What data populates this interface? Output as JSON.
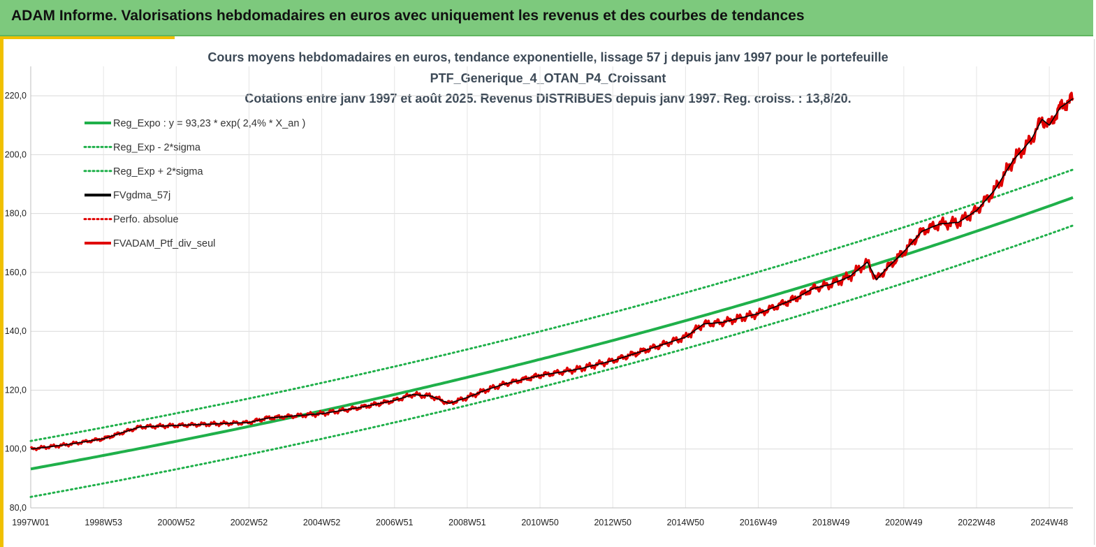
{
  "header": {
    "title": "ADAM Informe. Valorisations hebdomadaires en euros avec uniquement les revenus et des courbes de tendances"
  },
  "chart_data": {
    "type": "line",
    "title_lines": [
      "Cours moyens hebdomadaires  en euros, tendance exponentielle, lissage 57 j depuis janv 1997 pour le portefeuille",
      "PTF_Generique_4_OTAN_P4_Croissant",
      "Cotations  entre janv 1997 et août  2025. Revenus DISTRIBUES depuis janv 1997. Reg. croiss. : 13,8/20."
    ],
    "x_tick_labels": [
      "1997W01",
      "1998W53",
      "2000W52",
      "2002W52",
      "2004W52",
      "2006W51",
      "2008W51",
      "2010W50",
      "2012W50",
      "2014W50",
      "2016W49",
      "2018W49",
      "2020W49",
      "2022W48",
      "2024W48"
    ],
    "x_tick_years": [
      1997.0,
      1999.0,
      2001.0,
      2003.0,
      2005.0,
      2007.0,
      2009.0,
      2011.0,
      2013.0,
      2015.0,
      2017.0,
      2019.0,
      2021.0,
      2023.0,
      2025.0
    ],
    "xlim": [
      1997.0,
      2025.65
    ],
    "y_tick_labels": [
      "80,0",
      "100,0",
      "120,0",
      "140,0",
      "160,0",
      "180,0",
      "200,0",
      "220,0"
    ],
    "y_ticks": [
      80,
      100,
      120,
      140,
      160,
      180,
      200,
      220
    ],
    "ylim": [
      80,
      230
    ],
    "grid": true,
    "legend_position": "top-left",
    "regression": {
      "a": 93.23,
      "growth": 0.024,
      "sigma_band": 9.5
    },
    "series": [
      {
        "name": "Reg_Expo : y = 93,23 * exp( 2,4% *  X_an )",
        "color": "#1fb04a",
        "style": "solid",
        "kind": "reg"
      },
      {
        "name": "Reg_Exp - 2*sigma",
        "color": "#1fb04a",
        "style": "dotted",
        "kind": "reg_low"
      },
      {
        "name": "Reg_Exp + 2*sigma",
        "color": "#1fb04a",
        "style": "dotted",
        "kind": "reg_high"
      },
      {
        "name": "FVgdma_57j",
        "color": "#000000",
        "style": "solid",
        "kind": "smooth"
      },
      {
        "name": "Perfo. absolue",
        "color": "#e00000",
        "style": "dotted",
        "kind": "none"
      },
      {
        "name": "FVADAM_Ptf_div_seul",
        "color": "#e00000",
        "style": "solid",
        "kind": "price"
      }
    ],
    "price_points": {
      "x": [
        1997.0,
        1998.0,
        1999.0,
        2000.0,
        2001.0,
        2002.0,
        2003.0,
        2003.5,
        2004.0,
        2005.0,
        2006.0,
        2007.0,
        2007.5,
        2008.0,
        2008.5,
        2009.0,
        2009.5,
        2010.0,
        2011.0,
        2012.0,
        2013.0,
        2014.0,
        2015.0,
        2015.5,
        2016.0,
        2017.0,
        2018.0,
        2018.5,
        2019.0,
        2019.5,
        2020.0,
        2020.25,
        2020.5,
        2021.0,
        2021.5,
        2022.0,
        2022.5,
        2023.0,
        2023.5,
        2024.0,
        2024.5,
        2024.8,
        2025.0,
        2025.3,
        2025.65
      ],
      "y": [
        100.0,
        101.5,
        103.5,
        107.5,
        108.0,
        108.5,
        109.0,
        110.5,
        111.0,
        112.0,
        114.0,
        116.5,
        118.5,
        118.0,
        115.5,
        117.5,
        120.0,
        122.0,
        125.0,
        127.0,
        130.0,
        134.0,
        138.0,
        142.5,
        143.0,
        146.0,
        151.0,
        154.5,
        156.0,
        158.5,
        163.5,
        157.5,
        161.0,
        167.0,
        174.0,
        176.5,
        177.0,
        181.0,
        188.0,
        198.0,
        205.0,
        212.0,
        210.0,
        216.0,
        219.0
      ]
    }
  }
}
